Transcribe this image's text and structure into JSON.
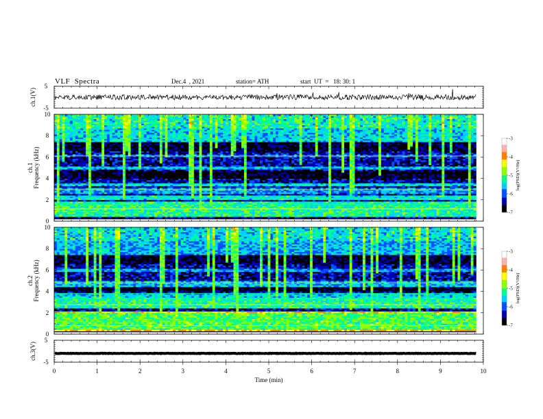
{
  "header": {
    "title": "VLF  Spectra",
    "date": "Dec.4  , 2021",
    "station": "station= ATH",
    "start": "start  UT  =   18: 30: 1"
  },
  "colors": {
    "background": "#ffffff",
    "axis": "#000000",
    "waveform": "#000000",
    "colormap": [
      "#000000",
      "#0000b4",
      "#0050ff",
      "#00d0ff",
      "#00ff90",
      "#90ff00",
      "#ffff00",
      "#ff8000",
      "#ff0000",
      "#ffffff"
    ]
  },
  "chart_data": [
    {
      "type": "line",
      "panel": "ch1-waveform",
      "ylabel": "ch.1(V)",
      "yticks": [
        "5",
        "-5"
      ],
      "ylim": [
        -5,
        5
      ],
      "xlim": [
        0,
        10
      ],
      "series": [
        {
          "level": 0,
          "noise_amplitude": 1.2
        }
      ]
    },
    {
      "type": "heatmap",
      "panel": "ch1-spectrogram",
      "ylabel": [
        "ch.1",
        "Frequency  (kHz)"
      ],
      "yticks": [
        "0",
        "2",
        "4",
        "6",
        "8",
        "10"
      ],
      "ylim": [
        0,
        10
      ],
      "xlim": [
        0,
        9.83
      ],
      "colorbar": {
        "label": "log(PSD)(V²/Hz)",
        "ticks": [
          "-3",
          "-4",
          "-5",
          "-6",
          "-7"
        ],
        "range": [
          -7,
          -3
        ]
      }
    },
    {
      "type": "heatmap",
      "panel": "ch2-spectrogram",
      "ylabel": [
        "ch.2",
        "Frequency  (kHz)"
      ],
      "yticks": [
        "0",
        "2",
        "4",
        "6",
        "8",
        "10"
      ],
      "ylim": [
        0,
        10
      ],
      "xlim": [
        0,
        9.83
      ],
      "colorbar": {
        "label": "log(PSD)(V²/Hz)",
        "ticks": [
          "-3",
          "-4",
          "-5",
          "-6",
          "-7"
        ],
        "range": [
          -7,
          -3
        ]
      }
    },
    {
      "type": "line",
      "panel": "ch3-waveform",
      "ylabel": "ch.3(V)",
      "yticks": [
        "5",
        "-5"
      ],
      "ylim": [
        -5,
        5
      ],
      "xlim": [
        0,
        10
      ],
      "series": [
        {
          "level": -1,
          "noise_amplitude": 0.1
        }
      ]
    }
  ],
  "xaxis": {
    "label": "Time  (min)",
    "ticks": [
      "0",
      "1",
      "2",
      "3",
      "4",
      "5",
      "6",
      "7",
      "8",
      "9",
      "10"
    ],
    "range": [
      0,
      10
    ]
  }
}
